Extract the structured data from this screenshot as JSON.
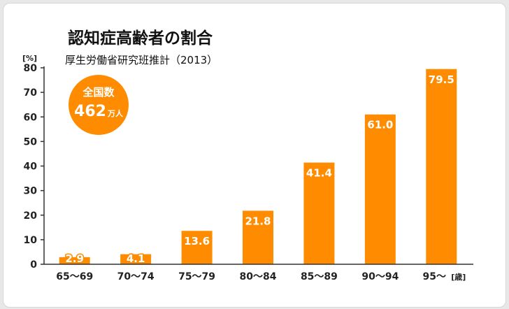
{
  "colors": {
    "bar": "#ff8c00",
    "axis": "#333333",
    "text": "#111111"
  },
  "badge": {
    "line1": "全国数",
    "number": "462",
    "unit": "万人"
  },
  "chart_data": {
    "type": "bar",
    "title": "認知症高齢者の割合",
    "subtitle": "厚生労働省研究班推計（2013）",
    "y_unit_label": "[%]",
    "x_unit_label": "[歳]",
    "categories": [
      "65〜69",
      "70〜74",
      "75〜79",
      "80〜84",
      "85〜89",
      "90〜94",
      "95〜"
    ],
    "values": [
      2.9,
      4.1,
      13.6,
      21.8,
      41.4,
      61.0,
      79.5
    ],
    "value_labels": [
      "2.9",
      "4.1",
      "13.6",
      "21.8",
      "41.4",
      "61.0",
      "79.5"
    ],
    "ylim": [
      0,
      80
    ],
    "yticks": [
      0,
      10,
      20,
      30,
      40,
      50,
      60,
      70,
      80
    ],
    "grid": false,
    "legend": "none"
  }
}
